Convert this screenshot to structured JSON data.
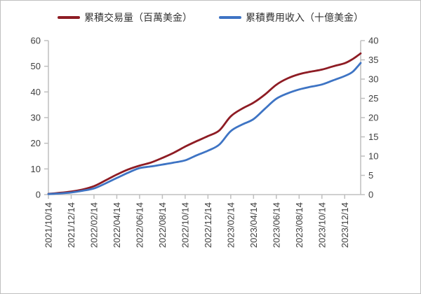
{
  "legend": {
    "items": [
      {
        "label": "累積交易量（百萬美金）",
        "color": "#8E1C24"
      },
      {
        "label": "累積費用收入（十億美金）",
        "color": "#3E74C4"
      }
    ]
  },
  "chart_data": {
    "type": "line",
    "title": "",
    "legend_position": "top",
    "grid": false,
    "x_tick_labels": [
      "2021/10/14",
      "2021/12/14",
      "2022/02/14",
      "2022/04/14",
      "2022/06/14",
      "2022/08/14",
      "2022/10/14",
      "2022/12/14",
      "2023/02/14",
      "2023/04/14",
      "2023/06/14",
      "2023/08/14",
      "2023/10/14",
      "2023/12/14"
    ],
    "x_max_units": 13.7,
    "y_left": {
      "label": "",
      "min": 0,
      "max": 60,
      "ticks": [
        "0",
        "10",
        "20",
        "30",
        "40",
        "50",
        "60"
      ]
    },
    "y_right": {
      "label": "",
      "min": 0,
      "max": 40,
      "ticks": [
        "0",
        "5",
        "10",
        "15",
        "20",
        "25",
        "30",
        "35",
        "40"
      ]
    },
    "axis_color": "#bfbfbf",
    "tick_label_color": "#404040",
    "series": [
      {
        "name": "累積交易量（百萬美金）",
        "axis": "left",
        "color": "#8E1C24",
        "x": [
          0,
          0.5,
          1,
          1.5,
          2,
          2.5,
          3,
          3.5,
          4,
          4.5,
          5,
          5.5,
          6,
          6.5,
          7,
          7.5,
          8,
          8.5,
          9,
          9.5,
          10,
          10.5,
          11,
          11.5,
          12,
          12.5,
          13,
          13.35,
          13.7
        ],
        "values": [
          0.3,
          0.7,
          1.2,
          2.0,
          3.3,
          5.5,
          7.8,
          9.8,
          11.3,
          12.5,
          14.3,
          16.3,
          18.7,
          20.8,
          22.8,
          25.0,
          30.5,
          33.5,
          35.8,
          39.0,
          42.8,
          45.3,
          46.9,
          47.9,
          48.7,
          50.0,
          51.2,
          52.8,
          55.0
        ]
      },
      {
        "name": "累積費用收入（十億美金）",
        "axis": "right",
        "color": "#3E74C4",
        "x": [
          0,
          0.5,
          1,
          1.5,
          2,
          2.5,
          3,
          3.5,
          4,
          4.5,
          5,
          5.5,
          6,
          6.5,
          7,
          7.5,
          8,
          8.5,
          9,
          9.5,
          10,
          10.5,
          11,
          11.5,
          12,
          12.5,
          13,
          13.35,
          13.7
        ],
        "values": [
          0.15,
          0.3,
          0.55,
          1.0,
          1.6,
          2.9,
          4.3,
          5.7,
          6.9,
          7.3,
          7.8,
          8.3,
          8.9,
          10.2,
          11.4,
          13.0,
          16.5,
          18.2,
          19.6,
          22.3,
          24.9,
          26.3,
          27.3,
          28.0,
          28.6,
          29.7,
          30.8,
          31.9,
          34.2
        ]
      }
    ]
  }
}
